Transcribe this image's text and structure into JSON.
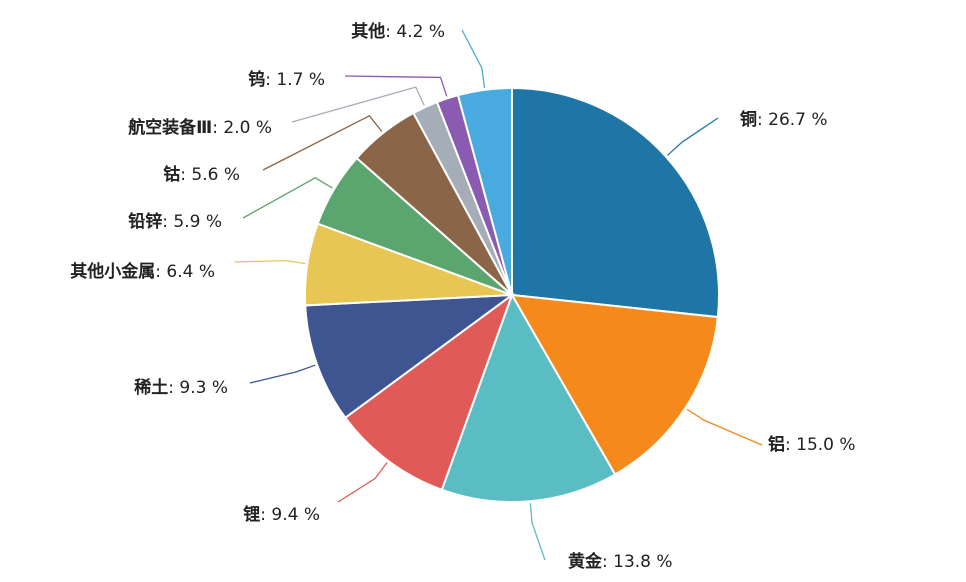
{
  "chart_data": {
    "type": "pie",
    "categories": [
      "铜",
      "铝",
      "黄金",
      "锂",
      "稀土",
      "其他小金属",
      "铅锌",
      "钴",
      "航空装备Ⅲ",
      "钨",
      "其他"
    ],
    "values": [
      26.7,
      15.0,
      13.8,
      9.4,
      9.3,
      6.4,
      5.9,
      5.6,
      2.0,
      1.7,
      4.2
    ],
    "value_labels": [
      "26.7 %",
      "15.0 %",
      "13.8 %",
      "9.4 %",
      "9.3 %",
      "6.4 %",
      "5.9 %",
      "5.6 %",
      "2.0 %",
      "1.7 %",
      "4.2 %"
    ],
    "label_separator": ": ",
    "colors": [
      "#1f76a6",
      "#f5891c",
      "#5bbdc4",
      "#e05b58",
      "#3e5592",
      "#e8c654",
      "#5ba56f",
      "#8a6547",
      "#a5adb8",
      "#8b5bb1",
      "#48aadf"
    ]
  }
}
